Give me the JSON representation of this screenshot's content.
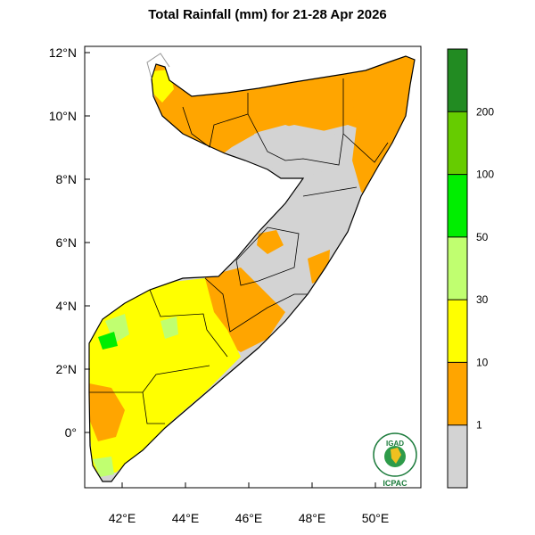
{
  "title": "Total Rainfall (mm) for 21-28 Apr 2026",
  "map": {
    "lat_ticks": [
      "12°N",
      "10°N",
      "8°N",
      "6°N",
      "4°N",
      "2°N",
      "0°"
    ],
    "lon_ticks": [
      "42°E",
      "44°E",
      "46°E",
      "48°E",
      "50°E"
    ],
    "region": "Somalia"
  },
  "colorbar": {
    "bins": [
      {
        "color": "#d3d3d3",
        "range": "<1"
      },
      {
        "color": "#ffa500",
        "range": "1-10"
      },
      {
        "color": "#ffff00",
        "range": "10-30"
      },
      {
        "color": "#c0ff70",
        "range": "30-50"
      },
      {
        "color": "#00ee00",
        "range": "50-100"
      },
      {
        "color": "#66cc00",
        "range": "100-200"
      },
      {
        "color": "#228b22",
        "range": ">200"
      }
    ],
    "labels": [
      "1",
      "10",
      "30",
      "50",
      "100",
      "200"
    ]
  },
  "logo": {
    "top_text": "IGAD",
    "bottom_text": "ICPAC"
  }
}
